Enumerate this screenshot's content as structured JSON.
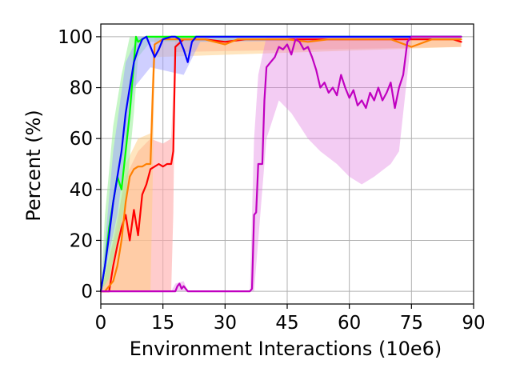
{
  "chart_data": {
    "type": "line",
    "title": "",
    "xlabel": "Environment Interactions (10e6)",
    "ylabel": "Percent (%)",
    "xlim": [
      0,
      90
    ],
    "ylim": [
      -5,
      105
    ],
    "xticks": [
      0,
      15,
      30,
      45,
      60,
      75,
      90
    ],
    "yticks": [
      0,
      20,
      40,
      60,
      80,
      100
    ],
    "x_tick_labels": [
      "0",
      "15",
      "30",
      "45",
      "60",
      "75",
      "90"
    ],
    "y_tick_labels": [
      "0",
      "20",
      "40",
      "60",
      "80",
      "100"
    ],
    "grid": true,
    "legend": "none",
    "series": [
      {
        "color": "#ff0000",
        "band_color": "#ffaaaa",
        "band_opacity": 0.6,
        "points": [
          [
            0,
            0
          ],
          [
            2,
            0
          ],
          [
            3,
            10
          ],
          [
            4,
            18
          ],
          [
            5,
            25
          ],
          [
            6,
            30
          ],
          [
            7,
            20
          ],
          [
            8,
            32
          ],
          [
            9,
            22
          ],
          [
            10,
            38
          ],
          [
            11,
            42
          ],
          [
            12,
            48
          ],
          [
            13,
            49
          ],
          [
            14,
            50
          ],
          [
            15,
            49
          ],
          [
            16,
            50
          ],
          [
            17,
            50
          ],
          [
            17.5,
            55
          ],
          [
            18,
            96
          ],
          [
            20,
            99
          ],
          [
            25,
            99
          ],
          [
            30,
            98
          ],
          [
            35,
            99
          ],
          [
            40,
            99
          ],
          [
            45,
            99
          ],
          [
            50,
            99
          ],
          [
            55,
            99
          ],
          [
            60,
            99
          ],
          [
            65,
            99
          ],
          [
            70,
            99
          ],
          [
            75,
            99
          ],
          [
            80,
            99
          ],
          [
            85,
            99
          ],
          [
            87,
            98
          ]
        ],
        "band_lower": [
          [
            0,
            0
          ],
          [
            5,
            0
          ],
          [
            10,
            0
          ],
          [
            15,
            0
          ],
          [
            17,
            0
          ],
          [
            17.5,
            30
          ],
          [
            18,
            94
          ],
          [
            87,
            96
          ]
        ],
        "band_upper": [
          [
            0,
            0
          ],
          [
            3,
            20
          ],
          [
            6,
            45
          ],
          [
            9,
            55
          ],
          [
            12,
            60
          ],
          [
            15,
            58
          ],
          [
            17,
            60
          ],
          [
            17.5,
            80
          ],
          [
            18,
            99
          ],
          [
            87,
            100
          ]
        ]
      },
      {
        "color": "#ff8000",
        "band_color": "#ffcc80",
        "band_opacity": 0.5,
        "points": [
          [
            0,
            0
          ],
          [
            1,
            0
          ],
          [
            2,
            2
          ],
          [
            3,
            4
          ],
          [
            4,
            10
          ],
          [
            5,
            20
          ],
          [
            6,
            35
          ],
          [
            7,
            45
          ],
          [
            8,
            48
          ],
          [
            9,
            49
          ],
          [
            10,
            49
          ],
          [
            11,
            50
          ],
          [
            12,
            50
          ],
          [
            12.5,
            75
          ],
          [
            13,
            97
          ],
          [
            15,
            99
          ],
          [
            20,
            99
          ],
          [
            25,
            99
          ],
          [
            30,
            97
          ],
          [
            33,
            99
          ],
          [
            40,
            99
          ],
          [
            45,
            99
          ],
          [
            50,
            98
          ],
          [
            55,
            99
          ],
          [
            60,
            99
          ],
          [
            65,
            99
          ],
          [
            70,
            99
          ],
          [
            75,
            96
          ],
          [
            80,
            99
          ],
          [
            87,
            99
          ]
        ],
        "band_lower": [
          [
            0,
            0
          ],
          [
            6,
            0
          ],
          [
            12,
            0
          ],
          [
            12.5,
            40
          ],
          [
            13,
            92
          ],
          [
            87,
            96
          ]
        ],
        "band_upper": [
          [
            0,
            0
          ],
          [
            4,
            25
          ],
          [
            6,
            50
          ],
          [
            9,
            60
          ],
          [
            12,
            62
          ],
          [
            12.5,
            90
          ],
          [
            13,
            100
          ],
          [
            87,
            100
          ]
        ]
      },
      {
        "color": "#00ff00",
        "band_color": "#a0f0a0",
        "band_opacity": 0.6,
        "points": [
          [
            0,
            0
          ],
          [
            1,
            10
          ],
          [
            2,
            25
          ],
          [
            3,
            35
          ],
          [
            4,
            45
          ],
          [
            5,
            40
          ],
          [
            6,
            55
          ],
          [
            7,
            70
          ],
          [
            8,
            90
          ],
          [
            8.5,
            100
          ],
          [
            9,
            98
          ],
          [
            10,
            99
          ],
          [
            11,
            100
          ],
          [
            15,
            100
          ],
          [
            20,
            100
          ],
          [
            30,
            100
          ],
          [
            45,
            100
          ],
          [
            60,
            100
          ],
          [
            75,
            100
          ],
          [
            87,
            100
          ]
        ],
        "band_lower": [
          [
            0,
            0
          ],
          [
            2,
            5
          ],
          [
            4,
            20
          ],
          [
            6,
            35
          ],
          [
            8,
            70
          ],
          [
            9,
            92
          ],
          [
            12,
            98
          ],
          [
            87,
            99
          ]
        ],
        "band_upper": [
          [
            0,
            0
          ],
          [
            1,
            30
          ],
          [
            3,
            65
          ],
          [
            5,
            85
          ],
          [
            7,
            100
          ],
          [
            87,
            100
          ]
        ]
      },
      {
        "color": "#0000ff",
        "band_color": "#a0a0ff",
        "band_opacity": 0.5,
        "points": [
          [
            0,
            0
          ],
          [
            1,
            10
          ],
          [
            2,
            22
          ],
          [
            3,
            35
          ],
          [
            4,
            45
          ],
          [
            5,
            55
          ],
          [
            6,
            70
          ],
          [
            7,
            80
          ],
          [
            8,
            90
          ],
          [
            9,
            95
          ],
          [
            10,
            99
          ],
          [
            11,
            100
          ],
          [
            13,
            92
          ],
          [
            14,
            95
          ],
          [
            15,
            99
          ],
          [
            17,
            100
          ],
          [
            18,
            100
          ],
          [
            19,
            99
          ],
          [
            20,
            95
          ],
          [
            21,
            90
          ],
          [
            22,
            98
          ],
          [
            23,
            100
          ],
          [
            25,
            100
          ],
          [
            30,
            100
          ],
          [
            45,
            100
          ],
          [
            60,
            100
          ],
          [
            75,
            100
          ],
          [
            87,
            100
          ]
        ],
        "band_lower": [
          [
            0,
            0
          ],
          [
            4,
            30
          ],
          [
            8,
            80
          ],
          [
            12,
            88
          ],
          [
            20,
            85
          ],
          [
            24,
            98
          ],
          [
            87,
            99
          ]
        ],
        "band_upper": [
          [
            0,
            0
          ],
          [
            3,
            55
          ],
          [
            6,
            90
          ],
          [
            9,
            100
          ],
          [
            87,
            100
          ]
        ]
      },
      {
        "color": "#c000c0",
        "band_color": "#e080e0",
        "band_opacity": 0.4,
        "points": [
          [
            0,
            0
          ],
          [
            18,
            0
          ],
          [
            18.5,
            2
          ],
          [
            19,
            3
          ],
          [
            19.5,
            1
          ],
          [
            20,
            2
          ],
          [
            21,
            0
          ],
          [
            25,
            0
          ],
          [
            30,
            0
          ],
          [
            35,
            0
          ],
          [
            36,
            0
          ],
          [
            36.5,
            1
          ],
          [
            37,
            30
          ],
          [
            37.5,
            31
          ],
          [
            38,
            50
          ],
          [
            39,
            50
          ],
          [
            39.5,
            75
          ],
          [
            40,
            88
          ],
          [
            41,
            90
          ],
          [
            42,
            92
          ],
          [
            43,
            96
          ],
          [
            44,
            95
          ],
          [
            45,
            97
          ],
          [
            46,
            93
          ],
          [
            47,
            99
          ],
          [
            48,
            98
          ],
          [
            49,
            95
          ],
          [
            50,
            96
          ],
          [
            51,
            92
          ],
          [
            52,
            87
          ],
          [
            53,
            80
          ],
          [
            54,
            82
          ],
          [
            55,
            78
          ],
          [
            56,
            80
          ],
          [
            57,
            77
          ],
          [
            58,
            85
          ],
          [
            59,
            80
          ],
          [
            60,
            76
          ],
          [
            61,
            79
          ],
          [
            62,
            73
          ],
          [
            63,
            75
          ],
          [
            64,
            72
          ],
          [
            65,
            78
          ],
          [
            66,
            75
          ],
          [
            67,
            80
          ],
          [
            68,
            75
          ],
          [
            69,
            78
          ],
          [
            70,
            82
          ],
          [
            71,
            72
          ],
          [
            72,
            80
          ],
          [
            73,
            85
          ],
          [
            74,
            98
          ],
          [
            75,
            100
          ],
          [
            80,
            100
          ],
          [
            87,
            100
          ]
        ],
        "band_lower": [
          [
            0,
            0
          ],
          [
            36,
            0
          ],
          [
            37,
            0
          ],
          [
            38,
            20
          ],
          [
            39,
            40
          ],
          [
            40,
            60
          ],
          [
            43,
            75
          ],
          [
            46,
            70
          ],
          [
            50,
            60
          ],
          [
            53,
            55
          ],
          [
            57,
            50
          ],
          [
            60,
            45
          ],
          [
            63,
            42
          ],
          [
            66,
            45
          ],
          [
            70,
            50
          ],
          [
            72,
            55
          ],
          [
            74,
            85
          ],
          [
            75,
            100
          ],
          [
            87,
            100
          ]
        ],
        "band_upper": [
          [
            0,
            0
          ],
          [
            17,
            0
          ],
          [
            18,
            3
          ],
          [
            20,
            4
          ],
          [
            21,
            0
          ],
          [
            36,
            0
          ],
          [
            37,
            60
          ],
          [
            38,
            85
          ],
          [
            40,
            100
          ],
          [
            74,
            100
          ],
          [
            87,
            100
          ]
        ]
      }
    ]
  }
}
